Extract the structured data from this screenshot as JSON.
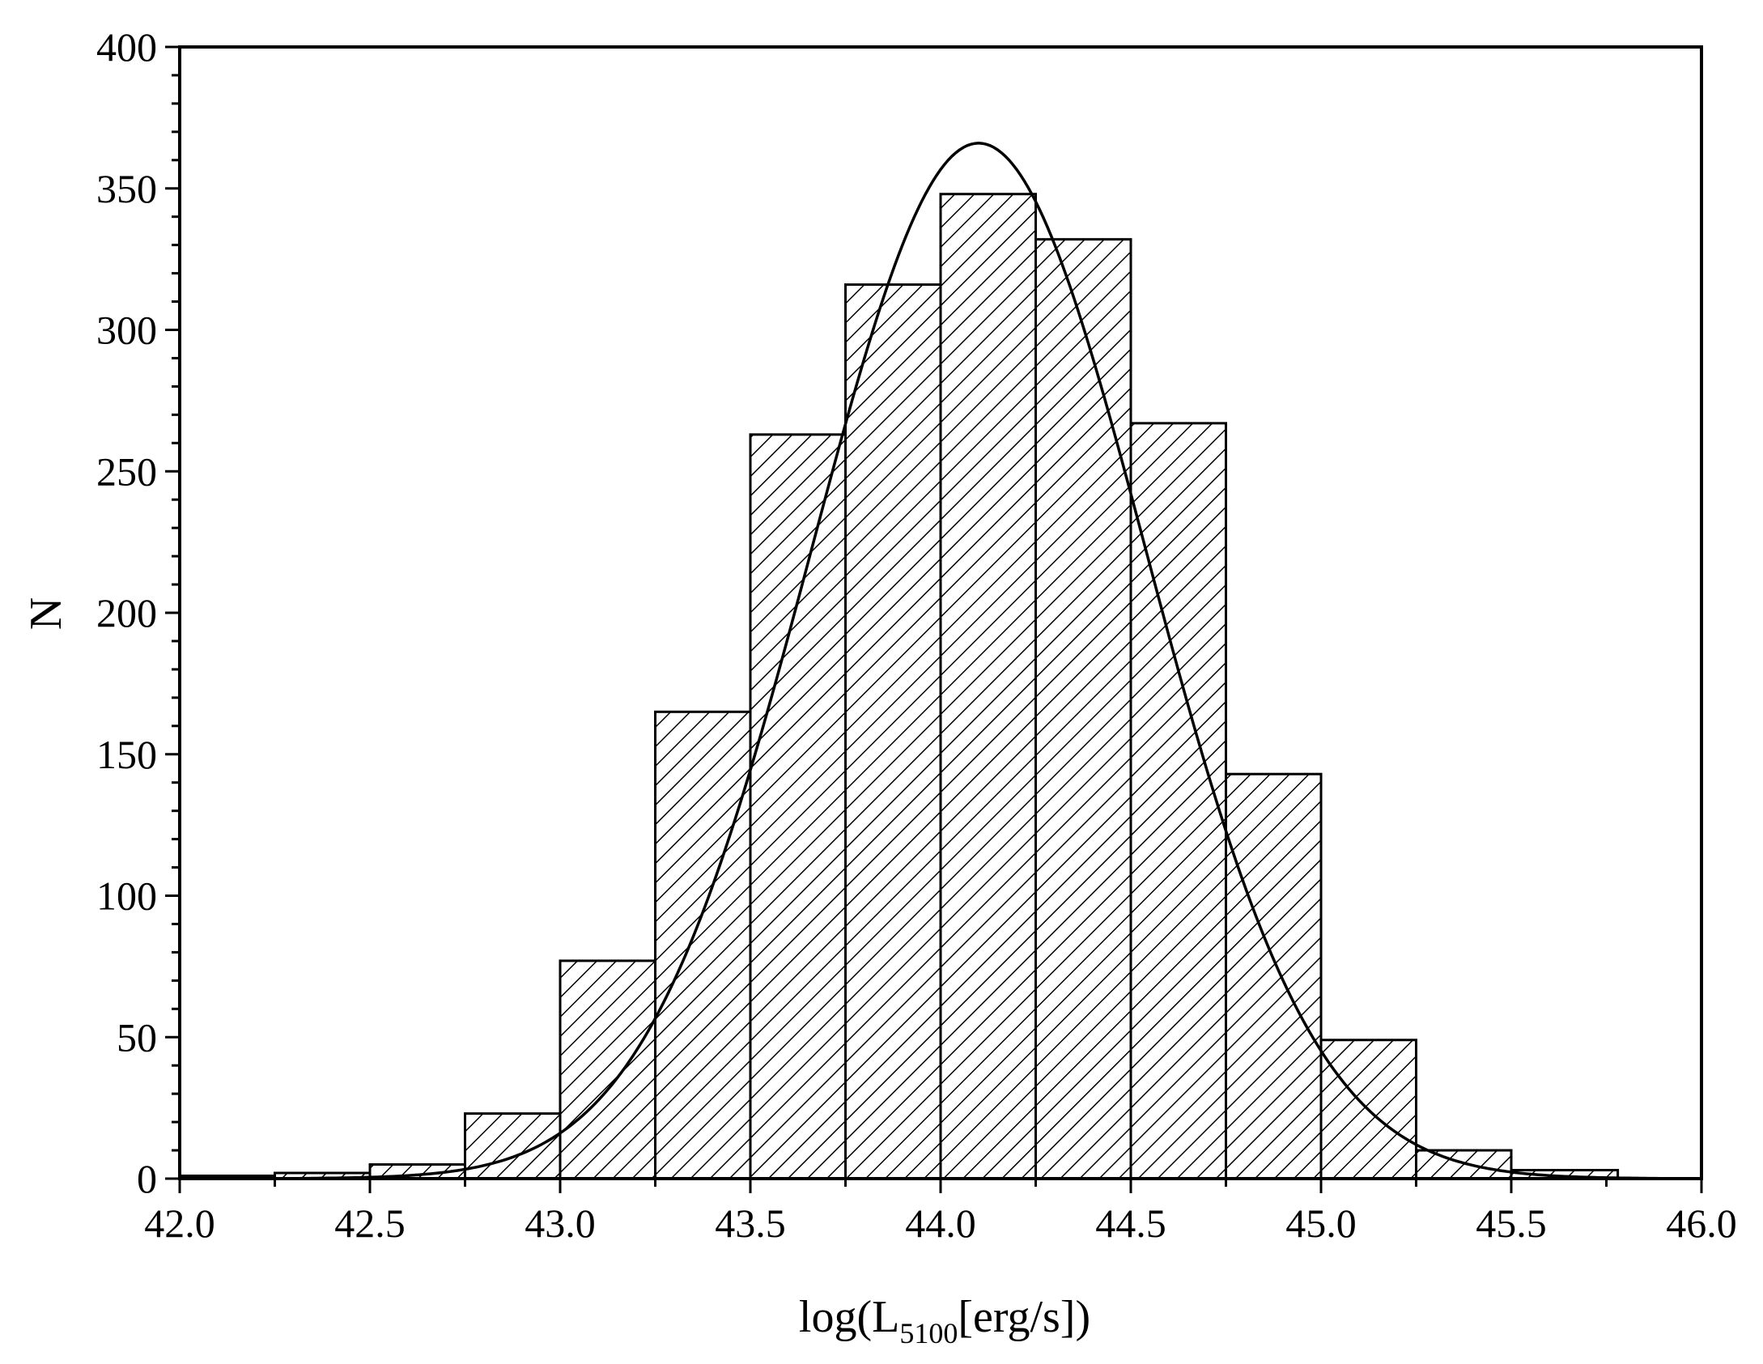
{
  "chart_data": {
    "type": "bar",
    "subtype": "histogram",
    "xlabel": {
      "prefix": "log(L",
      "subscript": "5100",
      "suffix": "[erg/s])"
    },
    "ylabel": "N",
    "xlim": [
      42.0,
      46.0
    ],
    "ylim": [
      0,
      400
    ],
    "x_ticks": [
      "42.0",
      "42.5",
      "43.0",
      "43.5",
      "44.0",
      "44.5",
      "45.0",
      "45.5",
      "46.0"
    ],
    "y_ticks": [
      "0",
      "50",
      "100",
      "150",
      "200",
      "250",
      "300",
      "350",
      "400"
    ],
    "bin_width": 0.25,
    "bins": [
      {
        "x0": 42.0,
        "x1": 42.25,
        "count": 1
      },
      {
        "x0": 42.25,
        "x1": 42.5,
        "count": 2
      },
      {
        "x0": 42.5,
        "x1": 42.75,
        "count": 5
      },
      {
        "x0": 42.75,
        "x1": 43.0,
        "count": 23
      },
      {
        "x0": 43.0,
        "x1": 43.25,
        "count": 77
      },
      {
        "x0": 43.25,
        "x1": 43.5,
        "count": 165
      },
      {
        "x0": 43.5,
        "x1": 43.75,
        "count": 263
      },
      {
        "x0": 43.75,
        "x1": 44.0,
        "count": 316
      },
      {
        "x0": 44.0,
        "x1": 44.25,
        "count": 348
      },
      {
        "x0": 44.25,
        "x1": 44.5,
        "count": 332
      },
      {
        "x0": 44.5,
        "x1": 44.75,
        "count": 267
      },
      {
        "x0": 44.75,
        "x1": 45.0,
        "count": 143
      },
      {
        "x0": 45.0,
        "x1": 45.25,
        "count": 49
      },
      {
        "x0": 45.25,
        "x1": 45.5,
        "count": 10
      },
      {
        "x0": 45.5,
        "x1": 45.78,
        "count": 3
      }
    ],
    "fit_curve": {
      "type": "gaussian",
      "peak_x": 44.1,
      "peak_y": 366,
      "sigma": 0.44
    },
    "fill_pattern": "diagonal-hatch",
    "grid": false,
    "legend": "none",
    "colors": {
      "bar_stroke": "#000000",
      "hatch": "#000000",
      "curve": "#000000",
      "background": "#ffffff"
    }
  }
}
